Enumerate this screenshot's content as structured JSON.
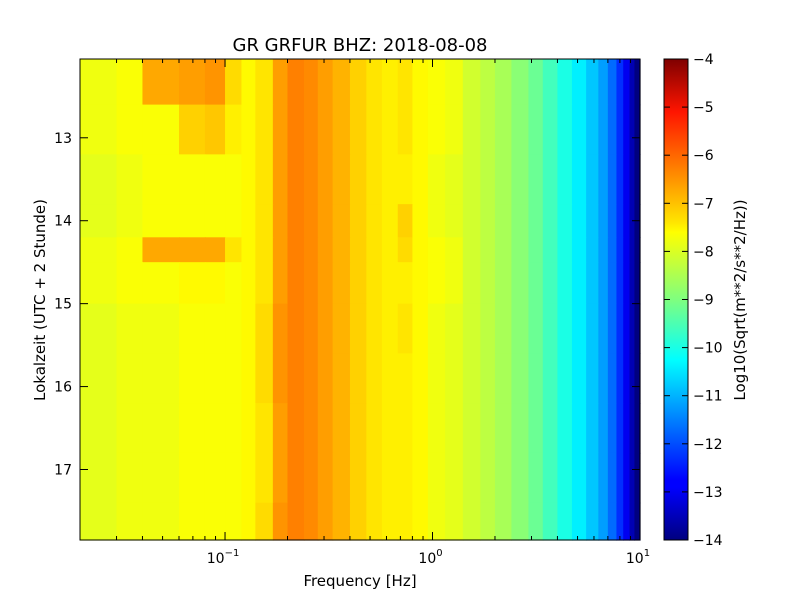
{
  "chart_data": {
    "type": "heatmap",
    "title": "GR GRFUR BHZ: 2018-08-08",
    "xlabel": "Frequency [Hz]",
    "ylabel": "Lokalzeit (UTC + 2 Stunde)",
    "x_scale": "log",
    "xlim": [
      0.02,
      10
    ],
    "ylim": [
      17.85,
      12.05
    ],
    "y_inverted": true,
    "x_ticks": [
      {
        "value": 0.1,
        "base": "10",
        "exp": "−1"
      },
      {
        "value": 1,
        "base": "10",
        "exp": "0"
      },
      {
        "value": 10,
        "base": "10",
        "exp": "1"
      }
    ],
    "y_ticks": [
      {
        "value": 13,
        "label": "13"
      },
      {
        "value": 14,
        "label": "14"
      },
      {
        "value": 15,
        "label": "15"
      },
      {
        "value": 16,
        "label": "16"
      },
      {
        "value": 17,
        "label": "17"
      }
    ],
    "colorbar": {
      "label": "Log10(Sqrt(m**2/s**2/Hz))",
      "range": [
        -14,
        -4
      ],
      "colormap": "jet",
      "ticks": [
        {
          "value": -4,
          "label": "−4"
        },
        {
          "value": -5,
          "label": "−5"
        },
        {
          "value": -6,
          "label": "−6"
        },
        {
          "value": -7,
          "label": "−7"
        },
        {
          "value": -8,
          "label": "−8"
        },
        {
          "value": -9,
          "label": "−9"
        },
        {
          "value": -10,
          "label": "−10"
        },
        {
          "value": -11,
          "label": "−11"
        },
        {
          "value": -12,
          "label": "−12"
        },
        {
          "value": -13,
          "label": "−13"
        },
        {
          "value": -14,
          "label": "−14"
        }
      ]
    },
    "frequency_bins": [
      0.02,
      0.03,
      0.04,
      0.06,
      0.08,
      0.1,
      0.12,
      0.14,
      0.17,
      0.2,
      0.24,
      0.28,
      0.33,
      0.4,
      0.48,
      0.57,
      0.68,
      0.8,
      0.95,
      1.15,
      1.4,
      1.7,
      2.0,
      2.4,
      2.9,
      3.4,
      4.0,
      4.7,
      5.5,
      6.3,
      7.0,
      7.7,
      8.3,
      8.9,
      9.4,
      10
    ],
    "time_bins": [
      12.05,
      12.6,
      13.2,
      13.8,
      14.2,
      14.5,
      15.0,
      15.6,
      16.2,
      16.8,
      17.4,
      17.85
    ],
    "values": [
      [
        -7.9,
        -7.8,
        -6.9,
        -6.8,
        -6.7,
        -7.4,
        -7.7,
        -7.5,
        -6.8,
        -6.5,
        -6.6,
        -6.8,
        -7.0,
        -7.3,
        -7.5,
        -7.6,
        -7.5,
        -7.7,
        -7.8,
        -7.9,
        -8.2,
        -8.4,
        -8.6,
        -8.9,
        -9.2,
        -9.6,
        -10.0,
        -10.4,
        -10.8,
        -11.2,
        -11.7,
        -12.3,
        -12.9,
        -13.5,
        -14.0
      ],
      [
        -7.9,
        -7.8,
        -7.8,
        -7.3,
        -7.2,
        -7.6,
        -7.7,
        -7.5,
        -6.8,
        -6.5,
        -6.6,
        -6.8,
        -7.0,
        -7.3,
        -7.5,
        -7.6,
        -7.5,
        -7.7,
        -7.8,
        -7.9,
        -8.2,
        -8.4,
        -8.6,
        -8.9,
        -9.2,
        -9.6,
        -10.0,
        -10.4,
        -10.8,
        -11.2,
        -11.7,
        -12.3,
        -12.9,
        -13.5,
        -14.0
      ],
      [
        -8.0,
        -7.9,
        -7.8,
        -7.8,
        -7.8,
        -7.8,
        -7.7,
        -7.5,
        -6.8,
        -6.5,
        -6.6,
        -6.8,
        -7.0,
        -7.3,
        -7.5,
        -7.6,
        -7.6,
        -7.7,
        -7.9,
        -8.0,
        -8.2,
        -8.4,
        -8.6,
        -8.9,
        -9.2,
        -9.6,
        -10.0,
        -10.4,
        -10.8,
        -11.2,
        -11.7,
        -12.3,
        -12.9,
        -13.5,
        -14.0
      ],
      [
        -8.0,
        -7.9,
        -7.8,
        -7.8,
        -7.8,
        -7.8,
        -7.7,
        -7.5,
        -6.8,
        -6.5,
        -6.6,
        -6.8,
        -7.0,
        -7.3,
        -7.5,
        -7.6,
        -7.3,
        -7.7,
        -7.9,
        -8.0,
        -8.2,
        -8.4,
        -8.6,
        -8.9,
        -9.2,
        -9.6,
        -10.0,
        -10.4,
        -10.8,
        -11.2,
        -11.7,
        -12.3,
        -12.9,
        -13.5,
        -14.0
      ],
      [
        -7.9,
        -7.8,
        -6.9,
        -6.9,
        -6.9,
        -7.5,
        -7.7,
        -7.5,
        -6.8,
        -6.5,
        -6.6,
        -6.8,
        -7.0,
        -7.3,
        -7.5,
        -7.6,
        -7.4,
        -7.7,
        -7.8,
        -7.9,
        -8.2,
        -8.4,
        -8.6,
        -8.9,
        -9.2,
        -9.6,
        -10.0,
        -10.4,
        -10.8,
        -11.2,
        -11.7,
        -12.3,
        -12.9,
        -13.5,
        -14.0
      ],
      [
        -7.9,
        -7.8,
        -7.8,
        -7.7,
        -7.7,
        -7.8,
        -7.7,
        -7.5,
        -6.8,
        -6.5,
        -6.6,
        -6.8,
        -7.0,
        -7.3,
        -7.5,
        -7.6,
        -7.6,
        -7.7,
        -7.8,
        -7.9,
        -8.2,
        -8.4,
        -8.6,
        -8.9,
        -9.2,
        -9.6,
        -10.0,
        -10.4,
        -10.8,
        -11.2,
        -11.7,
        -12.3,
        -12.9,
        -13.5,
        -14.0
      ],
      [
        -8.0,
        -7.9,
        -7.9,
        -7.8,
        -7.8,
        -7.8,
        -7.7,
        -7.4,
        -6.7,
        -6.5,
        -6.6,
        -6.8,
        -7.0,
        -7.3,
        -7.5,
        -7.6,
        -7.5,
        -7.7,
        -7.9,
        -8.0,
        -8.2,
        -8.4,
        -8.6,
        -8.9,
        -9.2,
        -9.6,
        -10.0,
        -10.4,
        -10.8,
        -11.2,
        -11.7,
        -12.3,
        -12.9,
        -13.5,
        -14.0
      ],
      [
        -8.0,
        -7.9,
        -7.9,
        -7.8,
        -7.8,
        -7.8,
        -7.7,
        -7.4,
        -6.7,
        -6.5,
        -6.6,
        -6.8,
        -7.0,
        -7.3,
        -7.5,
        -7.6,
        -7.6,
        -7.7,
        -7.9,
        -8.0,
        -8.2,
        -8.4,
        -8.6,
        -8.9,
        -9.2,
        -9.6,
        -10.0,
        -10.4,
        -10.8,
        -11.2,
        -11.7,
        -12.3,
        -12.9,
        -13.5,
        -14.0
      ],
      [
        -8.0,
        -7.9,
        -7.9,
        -7.8,
        -7.8,
        -7.8,
        -7.7,
        -7.5,
        -6.8,
        -6.5,
        -6.6,
        -6.8,
        -7.0,
        -7.3,
        -7.5,
        -7.6,
        -7.6,
        -7.7,
        -7.9,
        -8.0,
        -8.2,
        -8.4,
        -8.6,
        -8.9,
        -9.2,
        -9.6,
        -10.0,
        -10.4,
        -10.8,
        -11.2,
        -11.7,
        -12.3,
        -12.9,
        -13.5,
        -14.0
      ],
      [
        -8.0,
        -7.9,
        -7.9,
        -7.8,
        -7.8,
        -7.8,
        -7.7,
        -7.5,
        -6.8,
        -6.5,
        -6.6,
        -6.8,
        -7.0,
        -7.3,
        -7.5,
        -7.6,
        -7.6,
        -7.7,
        -7.9,
        -8.0,
        -8.2,
        -8.4,
        -8.6,
        -8.9,
        -9.2,
        -9.6,
        -10.0,
        -10.4,
        -10.8,
        -11.2,
        -11.7,
        -12.3,
        -12.9,
        -13.5,
        -14.0
      ],
      [
        -8.0,
        -7.9,
        -7.9,
        -7.8,
        -7.8,
        -7.8,
        -7.7,
        -7.4,
        -6.7,
        -6.5,
        -6.6,
        -6.8,
        -7.0,
        -7.3,
        -7.5,
        -7.6,
        -7.6,
        -7.7,
        -7.9,
        -8.0,
        -8.2,
        -8.4,
        -8.6,
        -8.9,
        -9.2,
        -9.6,
        -10.0,
        -10.4,
        -10.8,
        -11.2,
        -11.7,
        -12.3,
        -12.9,
        -13.5,
        -14.0
      ]
    ]
  }
}
